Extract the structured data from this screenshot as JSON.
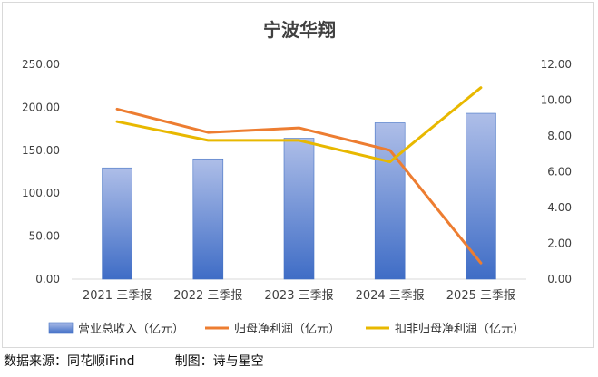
{
  "chart_data": {
    "type": "bar+line",
    "title": "宁波华翔",
    "categories": [
      "2021 三季报",
      "2022 三季报",
      "2023 三季报",
      "2024 三季报",
      "2025 三季报"
    ],
    "left_axis": {
      "min": 0,
      "max": 250,
      "step": 50,
      "tick_labels": [
        "0.00",
        "50.00",
        "100.00",
        "150.00",
        "200.00",
        "250.00"
      ]
    },
    "right_axis": {
      "min": 0,
      "max": 12,
      "step": 2,
      "tick_labels": [
        "0.00",
        "2.00",
        "4.00",
        "6.00",
        "8.00",
        "10.00",
        "12.00"
      ]
    },
    "grid": false,
    "legend_position": "bottom",
    "series": [
      {
        "name": "营业总收入（亿元）",
        "kind": "bar",
        "axis": "left",
        "color": "#4472c4",
        "values": [
          129.5,
          140,
          164,
          182,
          193
        ]
      },
      {
        "name": "归母净利润（亿元）",
        "kind": "line",
        "axis": "right",
        "color": "#ed7d31",
        "values": [
          9.5,
          8.2,
          8.45,
          7.2,
          0.9
        ]
      },
      {
        "name": "扣非归母净利润（亿元）",
        "kind": "line",
        "axis": "right",
        "color": "#e8b800",
        "values": [
          8.8,
          7.75,
          7.75,
          6.55,
          10.7
        ]
      }
    ]
  },
  "footer": {
    "source": "数据来源：同花顺iFind",
    "author": "制图：诗与星空"
  }
}
